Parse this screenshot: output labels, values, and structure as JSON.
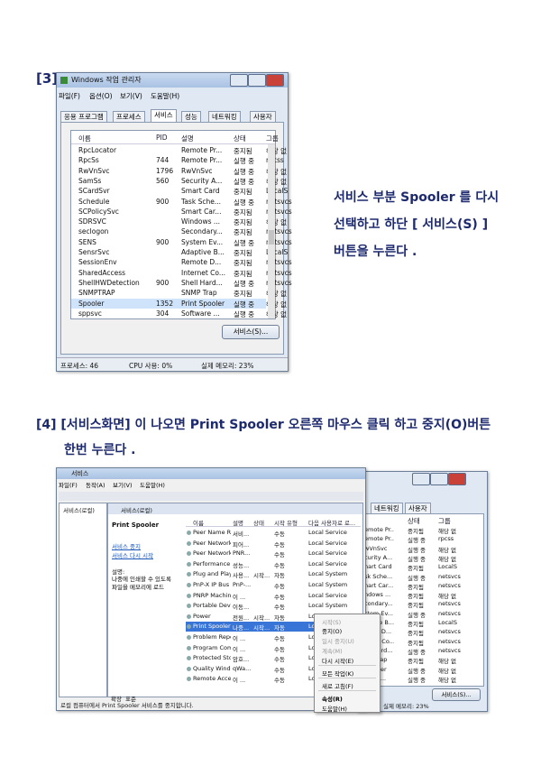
{
  "step3": {
    "label": "[3]",
    "window": {
      "title": "Windows 작업 관리자",
      "menu": [
        "파일(F)",
        "옵션(O)",
        "보기(V)",
        "도움말(H)"
      ],
      "tabs": [
        "응용 프로그램",
        "프로세스",
        "서비스",
        "성능",
        "네트워킹",
        "사용자"
      ],
      "columns": [
        "이름",
        "PID",
        "설명",
        "상태",
        "그룹"
      ],
      "rows": [
        [
          "RpcLocator",
          null,
          "Remote Pr...",
          "중지됨",
          "해당 없"
        ],
        [
          "RpcSs",
          "744",
          "Remote Pr...",
          "실행 중",
          "rpcss"
        ],
        [
          "RwVnSvc",
          "1796",
          "RwVnSvc",
          "실행 중",
          "해당 없"
        ],
        [
          "SamSs",
          "560",
          "Security A...",
          "실행 중",
          "해당 없"
        ],
        [
          "SCardSvr",
          null,
          "Smart Card",
          "중지됨",
          "LocalS"
        ],
        [
          "Schedule",
          "900",
          "Task Sche...",
          "실행 중",
          "netsvcs"
        ],
        [
          "SCPolicySvc",
          null,
          "Smart Car...",
          "중지됨",
          "netsvcs"
        ],
        [
          "SDRSVC",
          null,
          "Windows ...",
          "중지됨",
          "해당 없"
        ],
        [
          "seclogon",
          null,
          "Secondary...",
          "중지됨",
          "netsvcs"
        ],
        [
          "SENS",
          "900",
          "System Ev...",
          "실행 중",
          "netsvcs"
        ],
        [
          "SensrSvc",
          null,
          "Adaptive B...",
          "중지됨",
          "LocalS"
        ],
        [
          "SessionEnv",
          null,
          "Remote D...",
          "중지됨",
          "netsvcs"
        ],
        [
          "SharedAccess",
          null,
          "Internet Co...",
          "중지됨",
          "netsvcs"
        ],
        [
          "ShellHWDetection",
          "900",
          "Shell Hard...",
          "실행 중",
          "netsvcs"
        ],
        [
          "SNMPTRAP",
          null,
          "SNMP Trap",
          "중지됨",
          "해당 없"
        ],
        [
          "Spooler",
          "1352",
          "Print Spooler",
          "실행 중",
          "해당 없"
        ],
        [
          "sppsvc",
          "304",
          "Software ...",
          "실행 중",
          "해당 없"
        ]
      ],
      "button": "서비스(S)...",
      "status": [
        "프로세스: 46",
        "CPU 사용: 0%",
        "실제 메모리: 23%"
      ]
    },
    "instruction": [
      "서비스 부분  Spooler 를 다시",
      "선택하고 하단 [ 서비스(S) ]",
      "버튼을 누른다 ."
    ]
  },
  "step4": {
    "instruction": [
      "[4]  [서비스화면] 이 나오면  Print Spooler  오른쪽 마우스 클릭 하고 중지(O)버튼",
      "한번 누른다 ."
    ],
    "services": {
      "title": "서비스",
      "menu": [
        "파일(F)",
        "동작(A)",
        "보기(V)",
        "도움말(H)"
      ],
      "tree": "서비스(로컬)",
      "header": "서비스(로컬)",
      "selected": "Print Spooler",
      "links": [
        "서비스 중지",
        "서비스 다시 시작"
      ],
      "desc_label": "설명:",
      "desc": "나중에 인쇄할 수 있도록 파일을 메모리에 로드",
      "columns": [
        "이름",
        "설명",
        "상태",
        "시작 유형",
        "다음 사용자로 로..."
      ],
      "rows": [
        [
          "Peer Name Re...",
          "서비...",
          null,
          "수동",
          "Local Service"
        ],
        [
          "Peer Networki...",
          "피어...",
          null,
          "수동",
          "Local Service"
        ],
        [
          "Peer Networki...",
          "PNR...",
          null,
          "수동",
          "Local Service"
        ],
        [
          "Performance ...",
          "성능...",
          null,
          "수동",
          "Local Service"
        ],
        [
          "Plug and Play",
          "사용...",
          "시작...",
          "자동",
          "Local System"
        ],
        [
          "PnP-X IP Bus ...",
          "PnP-...",
          null,
          "수동",
          "Local System"
        ],
        [
          "PNRP Machin...",
          "이 ...",
          null,
          "수동",
          "Local Service"
        ],
        [
          "Portable Devi...",
          "이동...",
          null,
          "수동",
          "Local System"
        ],
        [
          "Power",
          "전원...",
          "시작...",
          "자동",
          "Local System"
        ],
        [
          "Print Spooler",
          "나중...",
          "시작...",
          "자동",
          "Local System"
        ],
        [
          "Problem Repo...",
          "이 ...",
          null,
          "수동",
          "Local System"
        ],
        [
          "Program Com...",
          "이 ...",
          null,
          "수동",
          "Local System"
        ],
        [
          "Protected Stor...",
          "암호...",
          null,
          "수동",
          "Local System"
        ],
        [
          "Quality Wind...",
          "qWa...",
          null,
          "수동",
          "Local Service"
        ],
        [
          "Remote Acces...",
          "이 ...",
          null,
          "수동",
          "Local System"
        ]
      ],
      "bottom_tabs": [
        "확장",
        "표준"
      ],
      "status": "로컬 컴퓨터에서 Print Spooler 서비스를 중지합니다.",
      "context_menu": [
        "시작(S)",
        "중지(O)",
        "일시 중지(U)",
        "계속(M)",
        "다시 시작(E)",
        "모든 작업(K)",
        "새로 고침(F)",
        "속성(R)",
        "도움말(H)"
      ]
    },
    "background_window": {
      "tabs": [
        "네트워킹",
        "사용자"
      ],
      "columns": [
        "상태",
        "그룹"
      ],
      "rows": [
        [
          "emote Pr...",
          "중지됨",
          "해당 없"
        ],
        [
          "emote Pr...",
          "실행 중",
          "rpcss"
        ],
        [
          "wVnSvc",
          "실행 중",
          "해당 없"
        ],
        [
          "curity A...",
          "실행 중",
          "해당 없"
        ],
        [
          "nart Card",
          "중지됨",
          "LocalS"
        ],
        [
          "sk Sche...",
          "실행 중",
          "netsvcs"
        ],
        [
          "nart Car...",
          "중지됨",
          "netsvcs"
        ],
        [
          "ndows ...",
          "중지됨",
          "해당 없"
        ],
        [
          "condary...",
          "중지됨",
          "netsvcs"
        ],
        [
          "stem Ev...",
          "실행 중",
          "netsvcs"
        ],
        [
          "aptive B...",
          "중지됨",
          "LocalS"
        ],
        [
          "mote D...",
          "중지됨",
          "netsvcs"
        ],
        [
          "ernet Co...",
          "중지됨",
          "netsvcs"
        ],
        [
          "ell Hard...",
          "실행 중",
          "netsvcs"
        ],
        [
          "MP Trap",
          "중지됨",
          "해당 없"
        ],
        [
          "Spooler",
          "실행 중",
          "해당 없"
        ],
        [
          "ware ...",
          "실행 중",
          "해당 없"
        ]
      ],
      "button": "서비스(S)...",
      "status": "실제 메모리: 23%"
    }
  }
}
